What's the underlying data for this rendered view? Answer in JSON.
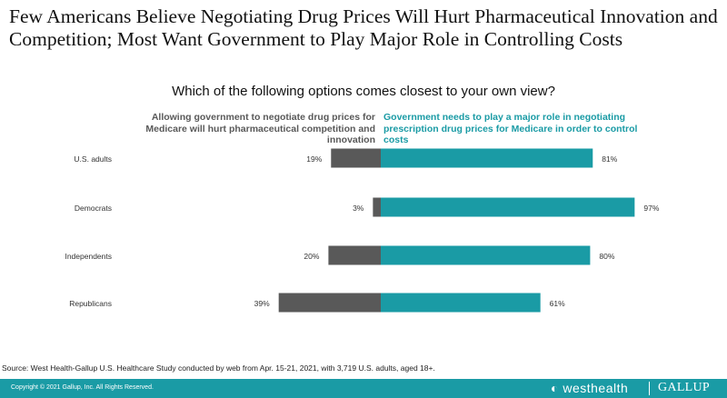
{
  "title": "Few Americans Believe Negotiating Drug Prices Will Hurt Pharmaceutical Innovation and Competition; Most Want Government to Play Major Role in Controlling Costs",
  "question": "Which of the following options comes closest to your own view?",
  "legend": {
    "left": "Allowing government to negotiate drug prices for Medicare will hurt pharmaceutical competition and innovation",
    "right": "Government needs to play a major role in negotiating prescription drug prices for Medicare in order to control costs"
  },
  "chart_data": {
    "type": "bar",
    "orientation": "horizontal-diverging",
    "categories": [
      "U.S. adults",
      "Democrats",
      "Independents",
      "Republicans"
    ],
    "series": [
      {
        "name": "Allowing government to negotiate drug prices for Medicare will hurt pharmaceutical competition and innovation",
        "values": [
          19,
          3,
          20,
          39
        ],
        "labels": [
          "19%",
          "3%",
          "20%",
          "39%"
        ],
        "color": "#595959",
        "direction": "left"
      },
      {
        "name": "Government needs to play a major role in negotiating prescription drug prices for Medicare in order to control costs",
        "values": [
          81,
          97,
          80,
          61
        ],
        "labels": [
          "81%",
          "97%",
          "80%",
          "61%"
        ],
        "color": "#1a9ba5",
        "direction": "right"
      }
    ],
    "unit": "%",
    "xlim": [
      0,
      100
    ],
    "grid": false
  },
  "source": "Source: West Health-Gallup U.S. Healthcare Study conducted by web from Apr. 15-21, 2021, with 3,719 U.S. adults, aged 18+.",
  "footer": {
    "copyright": "Copyright © 2021 Gallup, Inc. All Rights Reserved.",
    "logo_westhealth": "westhealth",
    "logo_gallup": "GALLUP",
    "background_color": "#1a9ba5"
  }
}
